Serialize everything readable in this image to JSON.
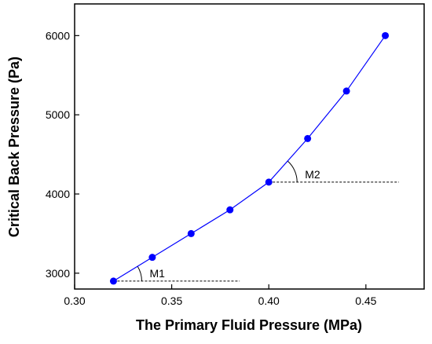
{
  "chart_data": {
    "type": "line",
    "title": "",
    "xlabel": "The Primary Fluid Pressure (MPa)",
    "ylabel": "Critical Back Pressure (Pa)",
    "xlim": [
      0.3,
      0.48
    ],
    "ylim": [
      2800,
      6400
    ],
    "xticks": [
      0.3,
      0.35,
      0.4,
      0.45
    ],
    "xtick_labels": [
      "0.30",
      "0.35",
      "0.40",
      "0.45"
    ],
    "yticks": [
      3000,
      4000,
      5000,
      6000
    ],
    "ytick_labels": [
      "3000",
      "4000",
      "5000",
      "6000"
    ],
    "grid": false,
    "legend": "none",
    "series": [
      {
        "x": [
          0.32,
          0.34,
          0.36,
          0.38,
          0.4,
          0.42,
          0.44,
          0.46
        ],
        "y": [
          2900,
          3200,
          3500,
          3800,
          4150,
          4700,
          5300,
          6000
        ],
        "color": "#0000ff",
        "marker": "circle"
      }
    ],
    "annotations": [
      {
        "label": "M1",
        "vertex_x": 0.32,
        "vertex_y": 2900,
        "ref_line_end_x": 0.385
      },
      {
        "label": "M2",
        "vertex_x": 0.4,
        "vertex_y": 4150,
        "ref_line_end_x": 0.467
      }
    ]
  }
}
